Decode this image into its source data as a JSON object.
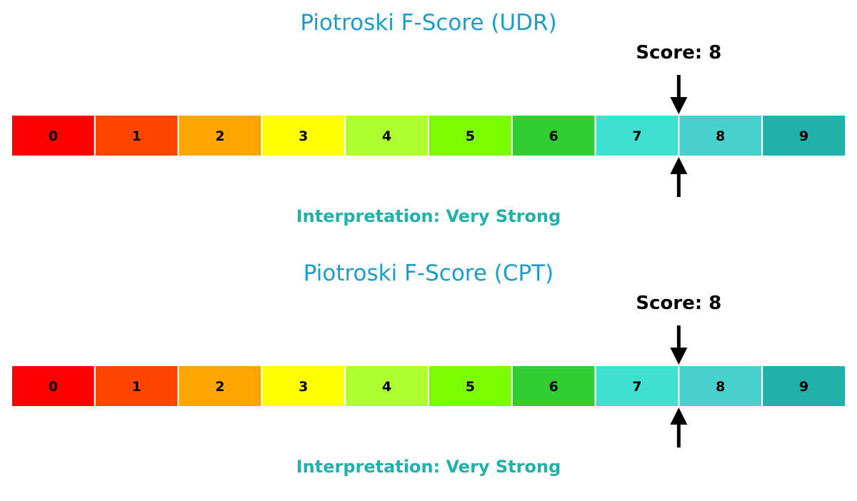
{
  "chart_data": [
    {
      "type": "gauge",
      "title": "Piotroski F-Score (UDR)",
      "categories": [
        "0",
        "1",
        "2",
        "3",
        "4",
        "5",
        "6",
        "7",
        "8",
        "9"
      ],
      "segment_colors": [
        "#ff0000",
        "#ff4500",
        "#ffa500",
        "#ffff00",
        "#adff2f",
        "#7cfc00",
        "#32cd32",
        "#40e0d0",
        "#48d1cc",
        "#20b2aa"
      ],
      "score": 8,
      "score_label": "Score: 8",
      "interpretation": "Interpretation: Very Strong"
    },
    {
      "type": "gauge",
      "title": "Piotroski F-Score (CPT)",
      "categories": [
        "0",
        "1",
        "2",
        "3",
        "4",
        "5",
        "6",
        "7",
        "8",
        "9"
      ],
      "segment_colors": [
        "#ff0000",
        "#ff4500",
        "#ffa500",
        "#ffff00",
        "#adff2f",
        "#7cfc00",
        "#32cd32",
        "#40e0d0",
        "#48d1cc",
        "#20b2aa"
      ],
      "score": 8,
      "score_label": "Score: 8",
      "interpretation": "Interpretation: Very Strong"
    }
  ],
  "colors": {
    "title": "#1a9ec9",
    "interpretation": "#20b2aa",
    "text": "#000000"
  }
}
